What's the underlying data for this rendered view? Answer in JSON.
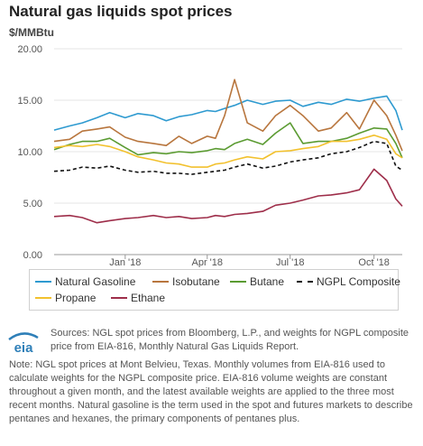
{
  "header": {
    "title": "Natural gas liquids spot prices",
    "unit": "$/MMBtu"
  },
  "footer": {
    "logo_text": "eia",
    "sources": "Sources: NGL spot prices from Bloomberg, L.P., and weights for NGPL composite price from EIA-816, Monthly Natural Gas Liquids Report.",
    "note": "Note: NGL spot prices at Mont Belvieu, Texas. Monthly volumes from EIA-816 used to calculate weights for the NGPL composite price. EIA-816 volume weights are constant throughout a given month, and the latest available weights are applied to the three most recent months. Natural gasoline is the term used in the spot and futures markets to describe pentanes and hexanes, the primary components of pentanes plus."
  },
  "chart_data": {
    "type": "line",
    "title": "Natural gas liquids spot prices",
    "ylabel": "$/MMBtu",
    "ylim": [
      0,
      20
    ],
    "yticks": [
      "0.00",
      "5.00",
      "10.00",
      "15.00",
      "20.00"
    ],
    "xlim": [
      "2017-10-15",
      "2018-11-01"
    ],
    "xticks": [
      {
        "label": "Jan '18",
        "date": "2018-01-01"
      },
      {
        "label": "Apr '18",
        "date": "2018-04-01"
      },
      {
        "label": "Jul '18",
        "date": "2018-07-01"
      },
      {
        "label": "Oct '18",
        "date": "2018-10-01"
      }
    ],
    "grid": true,
    "legend_position": "bottom",
    "x": [
      "2017-10-15",
      "2017-11-01",
      "2017-11-15",
      "2017-12-01",
      "2017-12-15",
      "2018-01-01",
      "2018-01-15",
      "2018-02-01",
      "2018-02-15",
      "2018-03-01",
      "2018-03-15",
      "2018-04-01",
      "2018-04-10",
      "2018-04-20",
      "2018-05-01",
      "2018-05-15",
      "2018-06-01",
      "2018-06-15",
      "2018-07-01",
      "2018-07-15",
      "2018-08-01",
      "2018-08-15",
      "2018-09-01",
      "2018-09-15",
      "2018-10-01",
      "2018-10-15",
      "2018-10-25",
      "2018-11-01"
    ],
    "series": [
      {
        "name": "Natural Gasoline",
        "color": "#2e9ad0",
        "values": [
          12.1,
          12.5,
          12.8,
          13.3,
          13.8,
          13.3,
          13.7,
          13.5,
          13.0,
          13.4,
          13.6,
          14.0,
          13.9,
          14.2,
          14.5,
          15.0,
          14.6,
          14.9,
          15.0,
          14.4,
          14.8,
          14.6,
          15.1,
          14.9,
          15.2,
          15.4,
          14.0,
          12.1
        ]
      },
      {
        "name": "Isobutane",
        "color": "#b8763e",
        "values": [
          11.0,
          11.2,
          12.0,
          12.2,
          12.4,
          11.4,
          11.0,
          10.8,
          10.6,
          11.5,
          10.8,
          11.5,
          11.3,
          13.5,
          17.0,
          12.8,
          12.0,
          13.5,
          14.5,
          13.5,
          12.0,
          12.3,
          13.8,
          12.2,
          15.0,
          13.5,
          11.6,
          10.1
        ]
      },
      {
        "name": "Butane",
        "color": "#5b9b32",
        "values": [
          10.2,
          10.7,
          11.0,
          11.0,
          11.3,
          10.4,
          9.7,
          9.9,
          9.8,
          10.0,
          9.9,
          10.1,
          10.3,
          10.2,
          10.8,
          11.2,
          10.7,
          11.8,
          12.8,
          10.8,
          11.0,
          11.0,
          11.3,
          11.8,
          12.3,
          12.2,
          10.8,
          9.4
        ]
      },
      {
        "name": "NGPL Composite",
        "color": "#111111",
        "dashed": true,
        "values": [
          8.1,
          8.2,
          8.5,
          8.4,
          8.6,
          8.2,
          8.0,
          8.1,
          7.9,
          7.9,
          7.8,
          8.0,
          8.1,
          8.2,
          8.5,
          8.8,
          8.4,
          8.6,
          9.0,
          9.2,
          9.4,
          9.8,
          10.0,
          10.4,
          11.0,
          10.8,
          8.6,
          8.2
        ]
      },
      {
        "name": "Propane",
        "color": "#f2c12e",
        "values": [
          10.4,
          10.6,
          10.5,
          10.7,
          10.5,
          10.0,
          9.5,
          9.2,
          8.9,
          8.8,
          8.5,
          8.5,
          8.8,
          8.9,
          9.2,
          9.5,
          9.3,
          10.0,
          10.1,
          10.3,
          10.5,
          11.0,
          11.0,
          11.2,
          11.6,
          11.2,
          9.8,
          9.4
        ]
      },
      {
        "name": "Ethane",
        "color": "#9e2e4a",
        "values": [
          3.7,
          3.8,
          3.6,
          3.1,
          3.3,
          3.5,
          3.6,
          3.8,
          3.6,
          3.7,
          3.5,
          3.6,
          3.8,
          3.7,
          3.9,
          4.0,
          4.2,
          4.8,
          5.0,
          5.3,
          5.7,
          5.8,
          6.0,
          6.3,
          8.3,
          7.2,
          5.4,
          4.7
        ]
      }
    ]
  }
}
